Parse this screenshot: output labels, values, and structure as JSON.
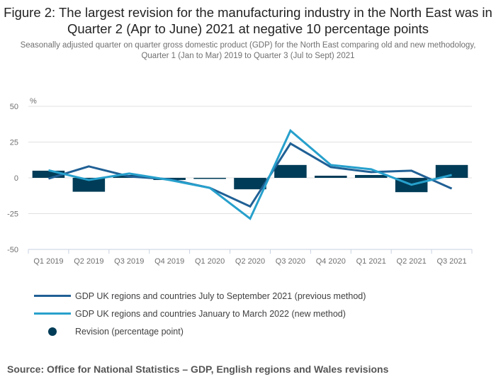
{
  "header": {
    "title": "Figure 2: The largest revision for the manufacturing industry in the North East was in Quarter 2 (Apr to June) 2021 at negative 10 percentage points",
    "subtitle": "Seasonally adjusted quarter on quarter gross domestic product (GDP) for the North East comparing old and new methodology, Quarter 1 (Jan to Mar) 2019 to Quarter 3 (Jul to Sept) 2021"
  },
  "source": "Source: Office for National Statistics – GDP, English regions and Wales revisions",
  "colors": {
    "previous": "#206095",
    "new": "#27a0cc",
    "revision": "#003c57",
    "grid": "#e0e0e0",
    "axis": "#c8d2e0"
  },
  "chart_data": {
    "type": "bar",
    "title": "Figure 2: The largest revision for the manufacturing industry in the North East was in Quarter 2 (Apr to June) 2021 at negative 10 percentage points",
    "ylabel": "%",
    "xlabel": "",
    "ylim": [
      -50,
      50
    ],
    "yticks": [
      50,
      25,
      0,
      -25,
      -50
    ],
    "grid": true,
    "legend_position": "bottom-left",
    "categories": [
      "Q1 2019",
      "Q2 2019",
      "Q3 2019",
      "Q4 2019",
      "Q1 2020",
      "Q2 2020",
      "Q3 2020",
      "Q4 2020",
      "Q1 2021",
      "Q2 2021",
      "Q3 2021"
    ],
    "series": [
      {
        "name": "GDP UK regions and countries July to September 2021 (previous method)",
        "type": "line",
        "values": [
          -0.5,
          8,
          1,
          -1,
          -7,
          -20,
          24,
          7.5,
          4,
          5,
          -7.5
        ]
      },
      {
        "name": "GDP UK regions and countries January to March 2022 (new method)",
        "type": "line",
        "values": [
          5.3,
          -1.5,
          3,
          -1.5,
          -7,
          -28.5,
          33,
          9,
          6,
          -4.8,
          2
        ]
      },
      {
        "name": "Revision (percentage point)",
        "type": "bar",
        "values": [
          5,
          -9.7,
          2,
          -1.5,
          -0.5,
          -8,
          9,
          1.5,
          2,
          -10,
          9
        ]
      }
    ]
  }
}
